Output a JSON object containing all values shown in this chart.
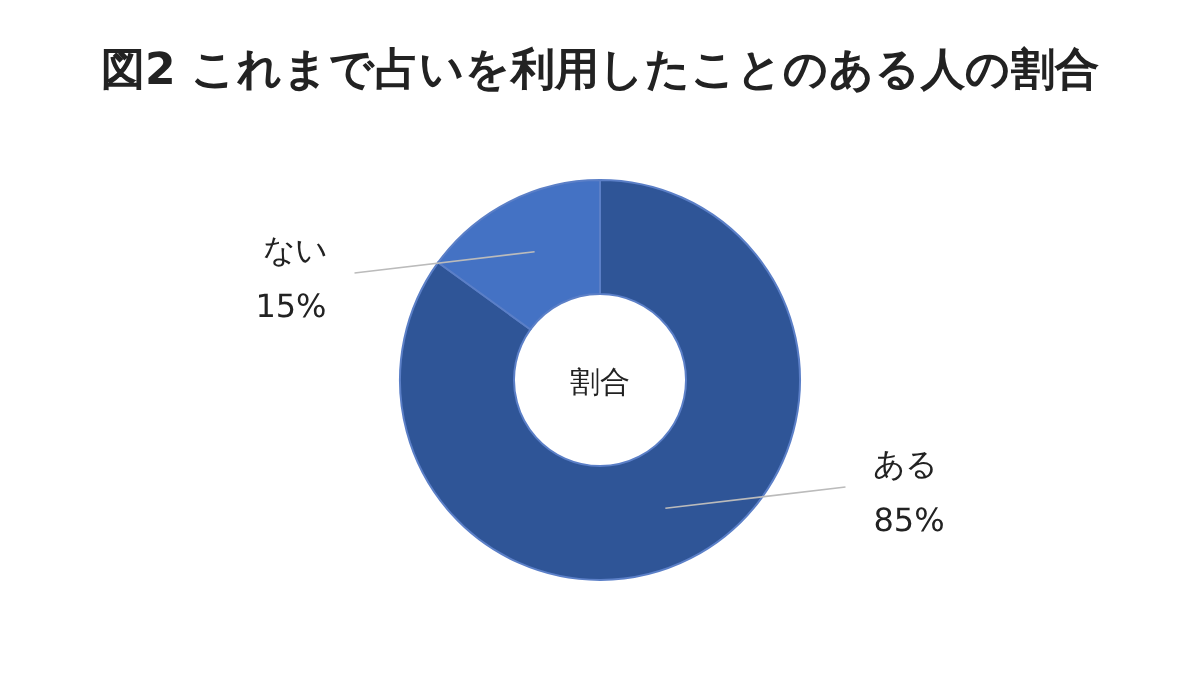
{
  "chart_data": {
    "type": "donut",
    "title": "図2 これまで占いを利用したことのある人の割合",
    "categories": [
      "ある",
      "ない"
    ],
    "values": [
      85,
      15
    ],
    "colors": [
      "#2f5597",
      "#4472c4"
    ],
    "value_labels": [
      "85%",
      "15%"
    ],
    "annotations": [
      "割合"
    ]
  }
}
